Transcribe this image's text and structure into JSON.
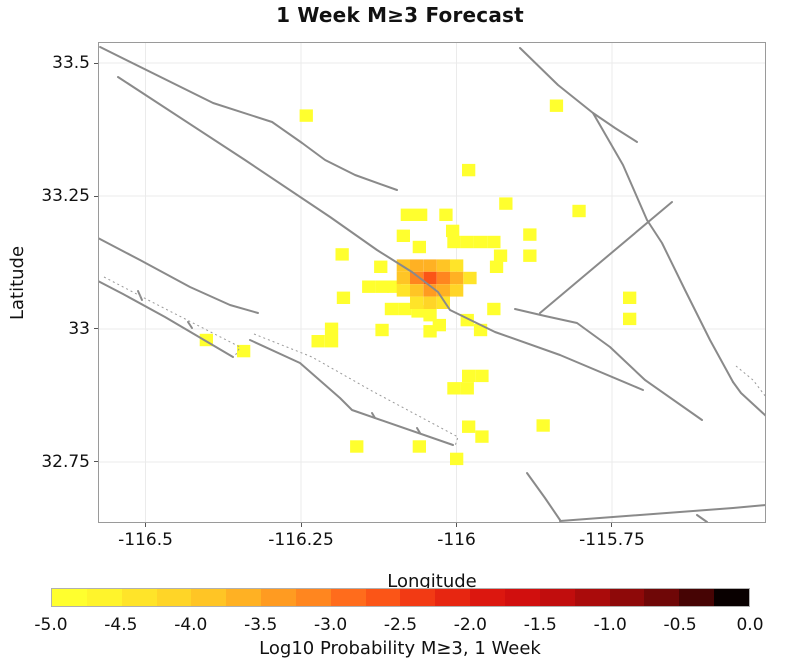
{
  "title": "1 Week M≥3 Forecast",
  "axes": {
    "xlabel": "Longitude",
    "ylabel": "Latitude",
    "xlim": [
      -116.5764,
      -115.5024
    ],
    "ylim": [
      32.6353,
      33.5395
    ],
    "x_ticks": [
      -116.5,
      -116.25,
      -116.0,
      -115.75
    ],
    "x_tick_labels": [
      "-116.5",
      "-116.25",
      "-116",
      "-115.75"
    ],
    "y_ticks": [
      33.5,
      33.25,
      33.0,
      32.75
    ],
    "y_tick_labels": [
      "33.5",
      "33.25",
      "33",
      "32.75"
    ],
    "grid_on": true,
    "gridline_color": "#ebebeb",
    "frame_color": "#9a9a9a"
  },
  "colorbar": {
    "label": "Log10 Probability M≥3, 1 Week",
    "vmin": -5.0,
    "vmax": 0.0,
    "tick_labels": [
      "-5.0",
      "-4.5",
      "-4.0",
      "-3.5",
      "-3.0",
      "-2.5",
      "-2.0",
      "-1.5",
      "-1.0",
      "-0.5",
      "0.0"
    ],
    "colors": [
      "#ffff2e",
      "#fff42c",
      "#ffe429",
      "#ffd527",
      "#ffc525",
      "#ffb123",
      "#ff9b21",
      "#ff861f",
      "#ff6c1c",
      "#fb5517",
      "#f23a14",
      "#e72611",
      "#dc170f",
      "#d10f0e",
      "#c10d0d",
      "#aa0b0b",
      "#8e0909",
      "#6f0707",
      "#460404",
      "#090000"
    ]
  },
  "chart_data": {
    "type": "heatmap",
    "title": "1 Week M≥3 Forecast",
    "xlabel": "Longitude",
    "ylabel": "Latitude",
    "value_label": "Log10 Probability M≥3, 1 Week",
    "value_range": [
      -5.0,
      0.0
    ],
    "legend_position": "bottom",
    "grid": {
      "origin_lon": -116.0426,
      "origin_lat": 33.0959,
      "dlon": 0.0214,
      "dlat": 0.0233,
      "note": "cells are [col,row,log10_probability]; lon=origin_lon+col*dlon, lat=origin_lat-row*dlat"
    },
    "cells": [
      [
        -9.3,
        -13.1,
        -4.9
      ],
      [
        9.5,
        -13.9,
        -4.9
      ],
      [
        2.9,
        -8.7,
        -4.9
      ],
      [
        5.7,
        -6.0,
        -4.9
      ],
      [
        11.2,
        -5.4,
        -4.9
      ],
      [
        -1.7,
        -5.1,
        -4.9
      ],
      [
        -0.7,
        -5.1,
        -4.9
      ],
      [
        1.2,
        -5.1,
        -4.9
      ],
      [
        1.7,
        -3.8,
        -4.9
      ],
      [
        -2.0,
        -3.4,
        -4.9
      ],
      [
        7.5,
        -3.5,
        -4.9
      ],
      [
        -0.8,
        -2.5,
        -4.9
      ],
      [
        1.8,
        -2.9,
        -4.9
      ],
      [
        2.8,
        -2.9,
        -4.9
      ],
      [
        3.8,
        -2.9,
        -4.9
      ],
      [
        4.8,
        -2.9,
        -4.9
      ],
      [
        5.3,
        -1.8,
        -4.9
      ],
      [
        5.0,
        -0.9,
        -4.9
      ],
      [
        -6.6,
        -1.9,
        -4.9
      ],
      [
        7.5,
        -1.8,
        -4.9
      ],
      [
        -4.6,
        0.7,
        -4.9
      ],
      [
        -3.6,
        0.7,
        -4.9
      ],
      [
        -2.7,
        0.7,
        -4.9
      ],
      [
        -3.7,
        -0.9,
        -4.9
      ],
      [
        -6.5,
        1.6,
        -4.9
      ],
      [
        15.0,
        1.6,
        -4.9
      ],
      [
        15.0,
        3.3,
        -4.9
      ],
      [
        -16.8,
        5.0,
        -4.9
      ],
      [
        -14.0,
        5.9,
        -4.9
      ],
      [
        -2.9,
        2.5,
        -4.9
      ],
      [
        -1.9,
        2.5,
        -4.9
      ],
      [
        -0.9,
        2.7,
        -4.9
      ],
      [
        0.0,
        3.0,
        -4.9
      ],
      [
        0.7,
        3.8,
        -4.9
      ],
      [
        0.0,
        4.3,
        -4.9
      ],
      [
        2.8,
        3.4,
        -4.9
      ],
      [
        3.8,
        4.2,
        -4.9
      ],
      [
        4.8,
        2.5,
        -4.9
      ],
      [
        -3.6,
        4.2,
        -4.9
      ],
      [
        -7.4,
        4.1,
        -4.9
      ],
      [
        -8.4,
        5.1,
        -4.9
      ],
      [
        -7.4,
        5.1,
        -4.9
      ],
      [
        2.9,
        7.9,
        -4.9
      ],
      [
        3.9,
        7.9,
        -4.9
      ],
      [
        1.8,
        8.9,
        -4.9
      ],
      [
        2.8,
        8.9,
        -4.9
      ],
      [
        -5.5,
        13.6,
        -4.9
      ],
      [
        -0.8,
        13.6,
        -4.9
      ],
      [
        2.9,
        12.0,
        -4.9
      ],
      [
        3.9,
        12.8,
        -4.9
      ],
      [
        2.0,
        14.6,
        -4.9
      ],
      [
        8.5,
        11.9,
        -4.9
      ],
      [
        -2,
        -1,
        -4.0
      ],
      [
        -1,
        -1,
        -3.7
      ],
      [
        0,
        -1,
        -3.6
      ],
      [
        1,
        -1,
        -3.9
      ],
      [
        2,
        -1,
        -4.3
      ],
      [
        -2,
        0,
        -3.9
      ],
      [
        -1,
        0,
        -3.2
      ],
      [
        0,
        0,
        -2.6
      ],
      [
        1,
        0,
        -3.1
      ],
      [
        2,
        0,
        -3.7
      ],
      [
        3,
        0,
        -4.3
      ],
      [
        -2,
        1,
        -4.3
      ],
      [
        -1,
        1,
        -3.9
      ],
      [
        0,
        1,
        -3.3
      ],
      [
        1,
        1,
        -3.7
      ],
      [
        2,
        1,
        -4.1
      ],
      [
        -1,
        2,
        -4.4
      ],
      [
        0,
        2,
        -4.2
      ],
      [
        1,
        2,
        -4.4
      ]
    ],
    "faults": {
      "color": "#8a8a8a",
      "solid": [
        [
          [
            -116.5731,
            33.5301
          ],
          [
            -116.3914,
            33.4248
          ],
          [
            -116.2965,
            33.3891
          ],
          [
            -116.2483,
            33.3496
          ],
          [
            -116.2113,
            33.3177
          ],
          [
            -116.1631,
            33.2895
          ],
          [
            -116.0956,
            33.2613
          ]
        ],
        [
          [
            -116.5442,
            33.4737
          ],
          [
            -116.34,
            33.3177
          ],
          [
            -116.2033,
            33.2105
          ],
          [
            -116.1278,
            33.1485
          ],
          [
            -116.0715,
            33.1071
          ],
          [
            -116.0297,
            33.0695
          ],
          [
            -116.0104,
            33.0357
          ],
          [
            -115.9381,
            32.9943
          ],
          [
            -115.8336,
            32.9511
          ],
          [
            -115.7002,
            32.8853
          ]
        ],
        [
          [
            -116.5764,
            33.1711
          ],
          [
            -116.5088,
            33.1297
          ],
          [
            -116.4285,
            33.0789
          ],
          [
            -116.3642,
            33.0451
          ],
          [
            -116.3191,
            33.0301
          ]
        ],
        [
          [
            -116.5764,
            33.0902
          ],
          [
            -116.5362,
            33.0658
          ],
          [
            -116.4687,
            33.0226
          ],
          [
            -116.3593,
            32.9474
          ]
        ],
        [
          [
            -116.332,
            32.9793
          ],
          [
            -116.2516,
            32.9361
          ],
          [
            -116.1873,
            32.8703
          ],
          [
            -116.168,
            32.8477
          ],
          [
            -116.0056,
            32.782
          ]
        ],
        [
          [
            -116.5121,
            33.0714
          ],
          [
            -116.5056,
            33.0545
          ]
        ],
        [
          [
            -116.4317,
            33.0132
          ],
          [
            -116.4252,
            33.0019
          ]
        ],
        [
          [
            -116.1359,
            32.8421
          ],
          [
            -116.1311,
            32.8327
          ]
        ],
        [
          [
            -116.0635,
            32.8139
          ],
          [
            -116.0587,
            32.8045
          ]
        ],
        [
          [
            -115.8336,
            32.6391
          ],
          [
            -115.5555,
            32.6635
          ],
          [
            -115.5024,
            32.6692
          ]
        ],
        [
          [
            -115.6134,
            32.6504
          ],
          [
            -115.5973,
            32.6372
          ]
        ],
        [
          [
            -115.8867,
            32.7293
          ],
          [
            -115.8577,
            32.6823
          ],
          [
            -115.8336,
            32.641
          ]
        ],
        [
          [
            -115.8979,
            33.5282
          ],
          [
            -115.8368,
            33.4586
          ],
          [
            -115.7805,
            33.406
          ],
          [
            -115.7323,
            33.3083
          ],
          [
            -115.6937,
            33.2049
          ],
          [
            -115.6696,
            33.1617
          ],
          [
            -115.6326,
            33.0733
          ],
          [
            -115.5924,
            32.9793
          ],
          [
            -115.5555,
            32.9004
          ]
        ],
        [
          [
            -115.5555,
            32.9004
          ],
          [
            -115.5426,
            32.8797
          ],
          [
            -115.5024,
            32.8365
          ]
        ],
        [
          [
            -115.7805,
            33.406
          ],
          [
            -115.7452,
            33.3778
          ],
          [
            -115.7098,
            33.3515
          ]
        ],
        [
          [
            -115.8657,
            33.0301
          ],
          [
            -115.6535,
            33.2387
          ]
        ],
        [
          [
            -115.9059,
            33.0376
          ],
          [
            -115.8577,
            33.0244
          ],
          [
            -115.8063,
            33.0113
          ],
          [
            -115.7532,
            32.9662
          ],
          [
            -115.6969,
            32.9041
          ],
          [
            -115.6053,
            32.829
          ]
        ]
      ],
      "dotted": [
        [
          [
            -116.5667,
            33.0977
          ],
          [
            -116.4928,
            33.0526
          ],
          [
            -116.3481,
            32.9662
          ],
          [
            -116.3561,
            32.9492
          ]
        ],
        [
          [
            -116.3256,
            32.9906
          ],
          [
            -116.2323,
            32.9474
          ],
          [
            -116.1359,
            32.8835
          ],
          [
            -115.9976,
            32.797
          ],
          [
            -116.0024,
            32.7801
          ]
        ],
        [
          [
            -115.5506,
            32.9305
          ],
          [
            -115.5233,
            32.9041
          ],
          [
            -115.5024,
            32.8722
          ]
        ]
      ]
    }
  }
}
